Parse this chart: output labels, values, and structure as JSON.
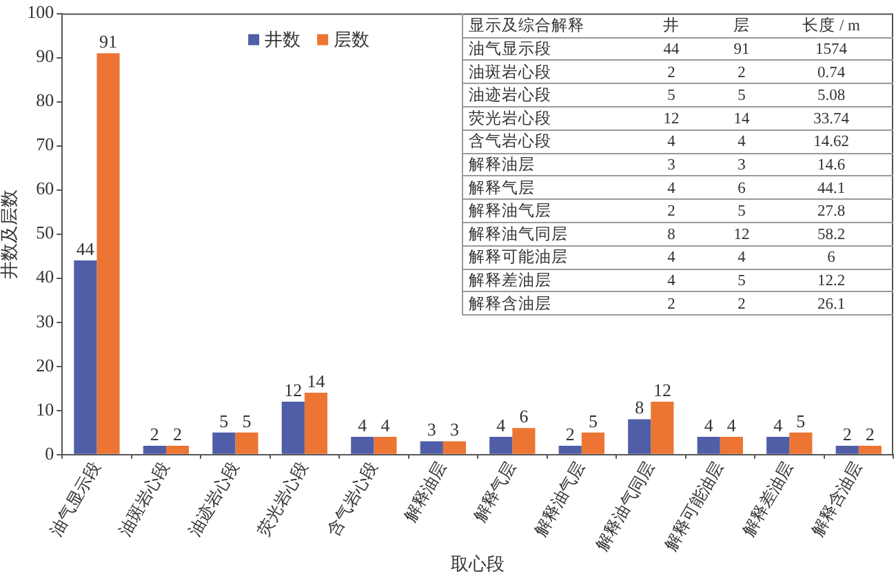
{
  "chart_data": {
    "type": "bar",
    "xlabel": "取心段",
    "ylabel": "井数及层数",
    "categories": [
      "油气显示段",
      "油斑岩心段",
      "油迹岩心段",
      "荧光岩心段",
      "含气岩心段",
      "解释油层",
      "解释气层",
      "解释油气层",
      "解释油气同层",
      "解释可能油层",
      "解释差油层",
      "解释含油层"
    ],
    "series": [
      {
        "name": "井数",
        "color": "#4f5ea6",
        "values": [
          44,
          2,
          5,
          12,
          4,
          3,
          4,
          2,
          8,
          4,
          4,
          2
        ]
      },
      {
        "name": "层数",
        "color": "#ed7533",
        "values": [
          91,
          2,
          5,
          14,
          4,
          3,
          6,
          5,
          12,
          4,
          5,
          2
        ]
      }
    ],
    "ylim": [
      0,
      100
    ],
    "yticks": [
      0,
      10,
      20,
      30,
      40,
      50,
      60,
      70,
      80,
      90,
      100
    ],
    "data_labels": true,
    "legend": "top",
    "annotations": [
      "显示及综合解释",
      "井",
      "层",
      "长度 / m",
      "44",
      "91",
      "1574",
      "2",
      "2",
      "0.74",
      "5",
      "5",
      "5.08",
      "12",
      "14",
      "33.74",
      "4",
      "4",
      "14.62",
      "3",
      "3",
      "14.6",
      "4",
      "6",
      "44.1",
      "2",
      "5",
      "27.8",
      "8",
      "12",
      "58.2",
      "4",
      "4",
      "6",
      "4",
      "5",
      "12.2",
      "2",
      "2",
      "26.1"
    ]
  }
}
